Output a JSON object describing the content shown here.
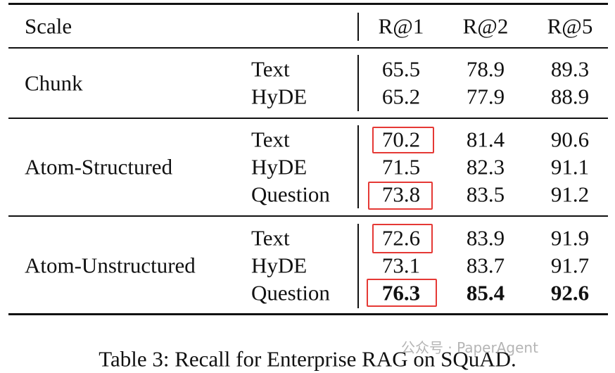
{
  "header": [
    "Scale",
    "R@1",
    "R@2",
    "R@5"
  ],
  "groups": [
    {
      "name": "Chunk",
      "rows": [
        [
          "Text",
          65.5,
          78.9,
          89.3
        ],
        [
          "HyDE",
          65.2,
          77.9,
          88.9
        ]
      ]
    },
    {
      "name": "Atom-Structured",
      "rows": [
        [
          "Text",
          70.2,
          81.4,
          90.6
        ],
        [
          "HyDE",
          71.5,
          82.3,
          91.1
        ],
        [
          "Question",
          73.8,
          83.5,
          91.2
        ]
      ]
    },
    {
      "name": "Atom-Unstructured",
      "rows": [
        [
          "Text",
          72.6,
          83.9,
          91.9
        ],
        [
          "HyDE",
          73.1,
          83.7,
          91.7
        ],
        [
          "Question",
          76.3,
          85.4,
          92.6
        ]
      ]
    }
  ],
  "caption": "Table 3: Recall for Enterprise RAG on SQuAD.",
  "watermark": "公众号 · PaperAgent"
}
